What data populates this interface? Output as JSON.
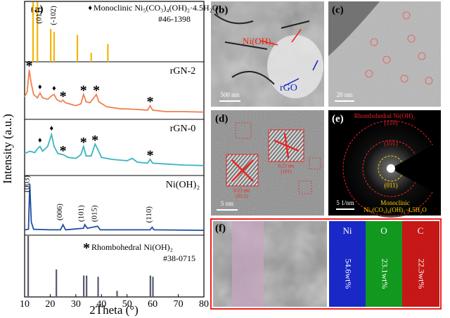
{
  "panel_labels": [
    "(a)",
    "(b)",
    "(c)",
    "(d)",
    "(e)",
    "(f)"
  ],
  "chart_data": {
    "type": "line",
    "xlabel": "2Theta (°)",
    "ylabel": "Intensity (a.u.)",
    "xlim": [
      10,
      80
    ],
    "xticks": [
      10,
      20,
      30,
      40,
      50,
      60,
      70,
      80
    ],
    "ylim": [
      0,
      100
    ],
    "references": [
      {
        "symbol": "♦",
        "name": "Monoclinic Ni₅(CO₃)₄(OH)₂·4.5H₂O",
        "code": "#46-1398",
        "color": "#f2b705",
        "x": [
          13.3,
          15,
          20.2,
          21.5,
          30.6,
          36,
          42.5
        ],
        "values": [
          100,
          100,
          55,
          50,
          45,
          15,
          30
        ],
        "peak_labels": [
          {
            "x": 15,
            "text": "(011)"
          },
          {
            "x": 20.5,
            "text": "(-102)"
          }
        ]
      },
      {
        "symbol": "*",
        "name": "Rhombohedral Ni(OH)₂",
        "code": "#38-0715",
        "color": "#555a70",
        "x": [
          11.4,
          22.4,
          33.1,
          34.2,
          38.7,
          46.1,
          59.1,
          60.1
        ],
        "values": [
          100,
          45,
          35,
          35,
          33,
          10,
          35,
          33
        ],
        "peak_labels": []
      }
    ],
    "series": [
      {
        "name": "rGN-2",
        "color": "#f08050",
        "x": [
          10,
          11,
          11.8,
          12.5,
          13.5,
          15,
          16,
          17,
          19,
          20.5,
          21.5,
          22.5,
          24,
          25,
          26,
          30,
          32,
          33,
          34,
          35.5,
          37,
          38,
          39,
          42,
          47,
          52,
          58,
          59,
          60,
          65,
          72,
          80
        ],
        "values": [
          40,
          50,
          95,
          70,
          45,
          38,
          48,
          38,
          35,
          42,
          45,
          35,
          30,
          33,
          28,
          22,
          26,
          45,
          30,
          28,
          38,
          45,
          30,
          20,
          16,
          15,
          13,
          22,
          13,
          10,
          10,
          9
        ],
        "annotations": [
          {
            "x": 11.8,
            "text": "*"
          },
          {
            "x": 16,
            "text": "♦"
          },
          {
            "x": 21.5,
            "text": "♦"
          },
          {
            "x": 25,
            "text": "*"
          },
          {
            "x": 33,
            "text": "*"
          },
          {
            "x": 38,
            "text": "*"
          },
          {
            "x": 59,
            "text": "*"
          }
        ]
      },
      {
        "name": "rGN-0",
        "color": "#3ab5c0",
        "x": [
          10,
          12,
          14,
          15,
          16,
          17,
          19,
          20.5,
          21.5,
          23,
          25,
          27,
          30,
          32,
          33,
          34,
          36,
          37.5,
          38.5,
          40,
          44,
          50,
          52,
          54,
          58,
          59,
          60,
          66,
          72,
          80
        ],
        "values": [
          40,
          45,
          42,
          50,
          55,
          45,
          55,
          80,
          55,
          40,
          38,
          32,
          30,
          38,
          55,
          35,
          35,
          60,
          50,
          32,
          28,
          25,
          30,
          22,
          20,
          28,
          20,
          18,
          16,
          15
        ],
        "annotations": [
          {
            "x": 16,
            "text": "♦"
          },
          {
            "x": 20.5,
            "text": "♦"
          },
          {
            "x": 25,
            "text": "*"
          },
          {
            "x": 33,
            "text": "*"
          },
          {
            "x": 37.5,
            "text": "*"
          },
          {
            "x": 59,
            "text": "*"
          }
        ]
      },
      {
        "name": "Ni(OH)₂",
        "color": "#1f4ea0",
        "x": [
          10,
          11.5,
          12,
          12.6,
          13.5,
          20,
          24,
          25,
          26,
          33,
          33.5,
          34.5,
          38.5,
          39.5,
          59,
          59.8,
          60.5,
          80
        ],
        "values": [
          5,
          6,
          95,
          20,
          6,
          5,
          5,
          15,
          5,
          8,
          15,
          8,
          12,
          5,
          5,
          10,
          5,
          4
        ],
        "annotations": [],
        "peak_labels": [
          {
            "x": 12.2,
            "text": "(003)"
          },
          {
            "x": 25,
            "text": "(006)"
          },
          {
            "x": 33.3,
            "text": "(101)"
          },
          {
            "x": 38.5,
            "text": "(015)"
          },
          {
            "x": 59.8,
            "text": "(110)"
          }
        ]
      }
    ]
  },
  "images": {
    "b": {
      "scale": "500 nm",
      "label_ni": "Ni(OH)₂",
      "label_rgo": "rGO"
    },
    "c": {
      "scale": "20 nm"
    },
    "d": {
      "scale": "5 nm",
      "fringe_1": "0.23 nm",
      "plane_1": "(01-2)",
      "fringe_2": "0.23 nm",
      "plane_2": "(101)"
    },
    "e": {
      "title": "Rhombohedral Ni(OH)₂",
      "ring_1": "(110)",
      "ring_2": "(101)",
      "ring_3": "(011)",
      "scale": "5 1/nm",
      "mono_1": "Monoclinic",
      "mono_2": "Ni₅(CO₃)₄(OH)₂·4.5H₂O"
    },
    "f": {
      "el_1": "Ni",
      "el_2": "O",
      "el_3": "C",
      "wt_1": "54.6wt%",
      "wt_2": "23.1wt%",
      "wt_3": "22.3wt%"
    }
  }
}
